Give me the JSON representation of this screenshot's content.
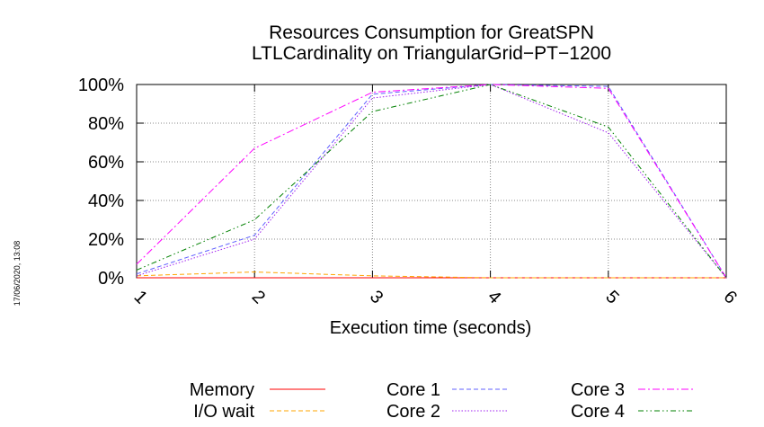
{
  "timestamp": "17/06/2020, 13:08",
  "chart_data": {
    "type": "line",
    "title": "Resources Consumption for GreatSPN",
    "subtitle": "LTLCardinality on TriangularGrid−PT−1200",
    "xlabel": "Execution time (seconds)",
    "ylabel": "",
    "x": [
      1,
      2,
      3,
      4,
      5,
      6
    ],
    "xlim": [
      1,
      6
    ],
    "ylim": [
      0,
      100
    ],
    "x_ticks": [
      "1",
      "2",
      "3",
      "4",
      "5",
      "6"
    ],
    "y_ticks": [
      "0%",
      "20%",
      "40%",
      "60%",
      "80%",
      "100%"
    ],
    "grid": true,
    "legend_position": "bottom",
    "series": [
      {
        "name": "Memory",
        "color": "#ff0000",
        "dash": "solid",
        "values": [
          0,
          0,
          0,
          0,
          0,
          0
        ]
      },
      {
        "name": "I/O wait",
        "color": "#ffa500",
        "dash": "dashed",
        "values": [
          1,
          3,
          1,
          0,
          0,
          0
        ]
      },
      {
        "name": "Core 1",
        "color": "#6060ff",
        "dash": "dashed",
        "values": [
          2,
          22,
          95,
          100,
          99,
          0
        ]
      },
      {
        "name": "Core 2",
        "color": "#a020f0",
        "dash": "dotted",
        "values": [
          1,
          20,
          93,
          100,
          75,
          0
        ]
      },
      {
        "name": "Core 3",
        "color": "#ff00ff",
        "dash": "dashdot",
        "values": [
          7,
          67,
          96,
          100,
          98,
          0
        ]
      },
      {
        "name": "Core 4",
        "color": "#008000",
        "dash": "dashdotdot",
        "values": [
          4,
          30,
          86,
          100,
          78,
          0
        ]
      }
    ]
  }
}
